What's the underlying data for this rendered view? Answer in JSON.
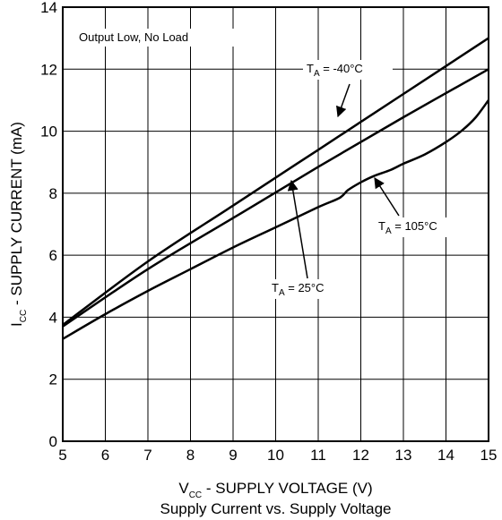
{
  "chart_data": {
    "type": "line",
    "title": "Supply Current vs. Supply Voltage",
    "xlabel": {
      "symbol": "V",
      "subscript": "CC",
      "text": " - SUPPLY VOLTAGE (V)"
    },
    "ylabel": {
      "symbol": "I",
      "subscript": "CC",
      "text": " - SUPPLY CURRENT (mA)"
    },
    "xlim": [
      5,
      15
    ],
    "ylim": [
      0,
      14
    ],
    "xticks": [
      5,
      6,
      7,
      8,
      9,
      10,
      11,
      12,
      13,
      14,
      15
    ],
    "yticks": [
      0,
      2,
      4,
      6,
      8,
      10,
      12,
      14
    ],
    "grid": true,
    "annotation": "Output Low, No Load",
    "series": [
      {
        "label": {
          "symbol": "T",
          "subscript": "A",
          "text": " = -40°C"
        },
        "points": [
          [
            5,
            3.75
          ],
          [
            7,
            5.8
          ],
          [
            9,
            7.6
          ],
          [
            11,
            9.4
          ],
          [
            13,
            11.2
          ],
          [
            15,
            13.0
          ]
        ]
      },
      {
        "label": {
          "symbol": "T",
          "subscript": "A",
          "text": " = 25°C"
        },
        "points": [
          [
            5,
            3.7
          ],
          [
            7,
            5.55
          ],
          [
            9,
            7.2
          ],
          [
            11,
            8.85
          ],
          [
            13,
            10.45
          ],
          [
            15,
            12.0
          ]
        ]
      },
      {
        "label": {
          "symbol": "T",
          "subscript": "A",
          "text": " = 105°C"
        },
        "points": [
          [
            5,
            3.3
          ],
          [
            6,
            4.1
          ],
          [
            7,
            4.85
          ],
          [
            8,
            5.55
          ],
          [
            9,
            6.25
          ],
          [
            10,
            6.9
          ],
          [
            11,
            7.55
          ],
          [
            11.5,
            7.85
          ],
          [
            11.7,
            8.1
          ],
          [
            12,
            8.35
          ],
          [
            12.3,
            8.55
          ],
          [
            12.7,
            8.75
          ],
          [
            13,
            8.95
          ],
          [
            13.5,
            9.25
          ],
          [
            14,
            9.65
          ],
          [
            14.4,
            10.05
          ],
          [
            14.7,
            10.45
          ],
          [
            15,
            11.0
          ]
        ]
      }
    ]
  }
}
